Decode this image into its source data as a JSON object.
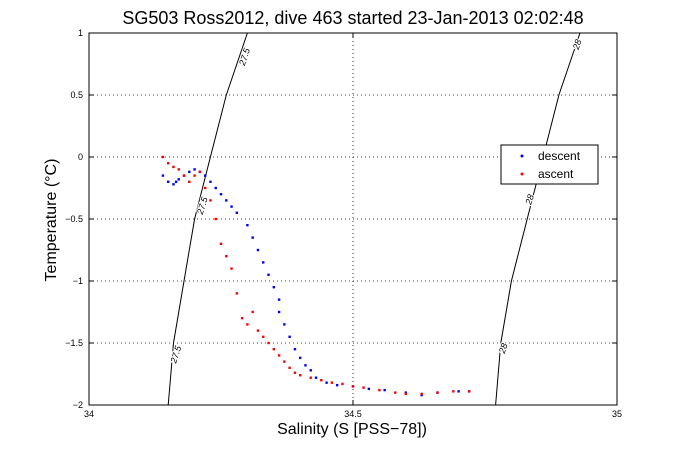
{
  "chart_data": {
    "type": "scatter",
    "title": "SG503 Ross2012, dive 463 started 23-Jan-2013 02:02:48",
    "xlabel": "Salinity (S [PSS−78])",
    "ylabel": "Temperature (°C)",
    "xlim": [
      34,
      35
    ],
    "ylim": [
      -2,
      1
    ],
    "xticks": [
      34,
      34.5,
      35
    ],
    "xtick_labels": [
      "34",
      "34.5",
      "35"
    ],
    "yticks": [
      1,
      0.5,
      0,
      -0.5,
      -1,
      -1.5,
      -2
    ],
    "ytick_labels": [
      "1",
      "0.5",
      "0",
      "−0.5",
      "−1",
      "−1.5",
      "−2"
    ],
    "grid": true,
    "legend_position": "right",
    "series": [
      {
        "name": "descent",
        "color": "#0000ff",
        "x": [
          34.14,
          34.15,
          34.16,
          34.165,
          34.17,
          34.18,
          34.19,
          34.2,
          34.21,
          34.22,
          34.23,
          34.24,
          34.25,
          34.26,
          34.27,
          34.28,
          34.3,
          34.31,
          34.32,
          34.33,
          34.34,
          34.35,
          34.36,
          34.36,
          34.37,
          34.38,
          34.39,
          34.4,
          34.41,
          34.42,
          34.43,
          34.45,
          34.47,
          34.5,
          34.53,
          34.56,
          34.6,
          34.63,
          34.66,
          34.7,
          34.72
        ],
        "y": [
          -0.15,
          -0.2,
          -0.22,
          -0.2,
          -0.18,
          -0.15,
          -0.12,
          -0.1,
          -0.12,
          -0.15,
          -0.2,
          -0.25,
          -0.3,
          -0.35,
          -0.4,
          -0.45,
          -0.55,
          -0.65,
          -0.75,
          -0.85,
          -0.95,
          -1.05,
          -1.15,
          -1.25,
          -1.35,
          -1.45,
          -1.55,
          -1.62,
          -1.68,
          -1.72,
          -1.78,
          -1.82,
          -1.84,
          -1.85,
          -1.87,
          -1.88,
          -1.9,
          -1.92,
          -1.9,
          -1.89,
          -1.89
        ]
      },
      {
        "name": "ascent",
        "color": "#ff0000",
        "x": [
          34.14,
          34.15,
          34.16,
          34.17,
          34.18,
          34.19,
          34.2,
          34.21,
          34.22,
          34.23,
          34.24,
          34.25,
          34.26,
          34.27,
          34.28,
          34.29,
          34.3,
          34.31,
          34.32,
          34.33,
          34.34,
          34.35,
          34.36,
          34.37,
          34.38,
          34.39,
          34.4,
          34.42,
          34.44,
          34.46,
          34.48,
          34.5,
          34.52,
          34.55,
          34.58,
          34.6,
          34.63,
          34.66,
          34.69,
          34.72
        ],
        "y": [
          0.0,
          -0.05,
          -0.08,
          -0.1,
          -0.15,
          -0.2,
          -0.15,
          -0.12,
          -0.25,
          -0.35,
          -0.5,
          -0.7,
          -0.8,
          -0.9,
          -1.1,
          -1.3,
          -1.35,
          -1.25,
          -1.4,
          -1.45,
          -1.5,
          -1.55,
          -1.6,
          -1.65,
          -1.7,
          -1.74,
          -1.76,
          -1.78,
          -1.8,
          -1.82,
          -1.83,
          -1.85,
          -1.86,
          -1.88,
          -1.9,
          -1.91,
          -1.91,
          -1.9,
          -1.89,
          -1.89
        ]
      }
    ],
    "contours": [
      {
        "label": "27.5",
        "points": [
          [
            34.15,
            -2
          ],
          [
            34.16,
            -1.5
          ],
          [
            34.18,
            -1.0
          ],
          [
            34.2,
            -0.5
          ],
          [
            34.23,
            0.0
          ],
          [
            34.26,
            0.5
          ],
          [
            34.3,
            1.0
          ]
        ]
      },
      {
        "label": "28",
        "points": [
          [
            34.77,
            -2
          ],
          [
            34.78,
            -1.5
          ],
          [
            34.8,
            -1.0
          ],
          [
            34.83,
            -0.5
          ],
          [
            34.86,
            0.0
          ],
          [
            34.89,
            0.5
          ],
          [
            34.93,
            1.0
          ]
        ]
      }
    ],
    "contour_label_positions": [
      {
        "label": "27.5",
        "x": 34.3,
        "y": 0.8
      },
      {
        "label": "27.5",
        "x": 34.22,
        "y": -0.4
      },
      {
        "label": "27.5",
        "x": 34.17,
        "y": -1.6
      },
      {
        "label": "28",
        "x": 34.93,
        "y": 0.9
      },
      {
        "label": "28",
        "x": 34.84,
        "y": -0.35
      },
      {
        "label": "28",
        "x": 34.79,
        "y": -1.55
      }
    ]
  }
}
